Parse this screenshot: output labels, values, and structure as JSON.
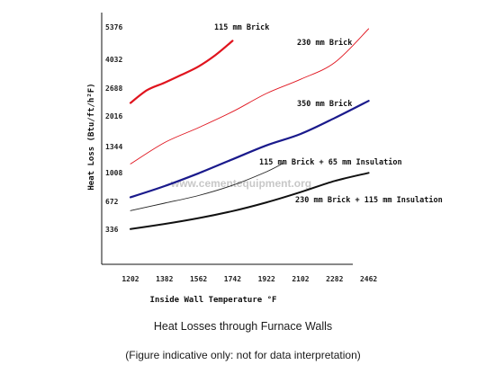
{
  "chart_data": {
    "type": "line",
    "title": "Heat Losses through Furnace Walls",
    "subtitle": "(Figure indicative only: not for data interpretation)",
    "xlabel": "Inside Wall Temperature °F",
    "ylabel": "Heat Loss (Btu/ft/h²F)",
    "watermark": "www.cementequipment.org",
    "x_ticks": [
      1202,
      1382,
      1562,
      1742,
      1922,
      2102,
      2282,
      2462
    ],
    "y_ticks": [
      336,
      672,
      1008,
      1344,
      2016,
      2688,
      4032,
      5376
    ],
    "grid": false,
    "series": [
      {
        "name": "115 mm Brick",
        "color": "#e0141e",
        "width": 2.2,
        "points": [
          [
            1202,
            2330
          ],
          [
            1290,
            2640
          ],
          [
            1382,
            2940
          ],
          [
            1470,
            3300
          ],
          [
            1562,
            3700
          ],
          [
            1650,
            4200
          ],
          [
            1742,
            4800
          ]
        ]
      },
      {
        "name": "230 mm Brick",
        "color": "#e0141e",
        "width": 0.9,
        "points": [
          [
            1202,
            1120
          ],
          [
            1382,
            1430
          ],
          [
            1562,
            1760
          ],
          [
            1742,
            2120
          ],
          [
            1922,
            2560
          ],
          [
            2102,
            3100
          ],
          [
            2282,
            3880
          ],
          [
            2462,
            5300
          ]
        ]
      },
      {
        "name": "350 mm Brick",
        "color": "#1a1a8c",
        "width": 2.2,
        "points": [
          [
            1202,
            720
          ],
          [
            1382,
            850
          ],
          [
            1562,
            1000
          ],
          [
            1742,
            1180
          ],
          [
            1922,
            1370
          ],
          [
            2102,
            1620
          ],
          [
            2282,
            1970
          ],
          [
            2462,
            2380
          ]
        ]
      },
      {
        "name": "115 mm Brick + 65 mm Insulation",
        "color": "#222222",
        "width": 0.9,
        "points": [
          [
            1202,
            560
          ],
          [
            1382,
            650
          ],
          [
            1562,
            740
          ],
          [
            1742,
            860
          ],
          [
            1922,
            1020
          ],
          [
            2010,
            1130
          ]
        ]
      },
      {
        "name": "230 mm Brick + 115 mm Insulation",
        "color": "#111111",
        "width": 2.0,
        "points": [
          [
            1202,
            338
          ],
          [
            1382,
            400
          ],
          [
            1562,
            470
          ],
          [
            1742,
            555
          ],
          [
            1922,
            660
          ],
          [
            2102,
            780
          ],
          [
            2282,
            910
          ],
          [
            2462,
            1005
          ]
        ]
      }
    ]
  }
}
